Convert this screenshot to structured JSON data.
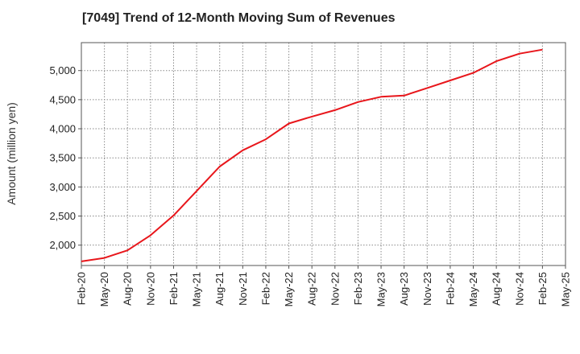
{
  "chart_data": {
    "type": "line",
    "title": "[7049]  Trend of 12-Month Moving Sum of Revenues",
    "ylabel": "Amount (million yen)",
    "xlabel": "",
    "x_ticks": [
      "Feb-20",
      "May-20",
      "Aug-20",
      "Nov-20",
      "Feb-21",
      "May-21",
      "Aug-21",
      "Nov-21",
      "Feb-22",
      "May-22",
      "Aug-22",
      "Nov-22",
      "Feb-23",
      "May-23",
      "Aug-23",
      "Nov-23",
      "Feb-24",
      "May-24",
      "Aug-24",
      "Nov-24",
      "Feb-25",
      "May-25"
    ],
    "y_ticks": [
      "2,000",
      "2,500",
      "3,000",
      "3,500",
      "4,000",
      "4,500",
      "5,000"
    ],
    "ylim": [
      1650,
      5480
    ],
    "grid": true,
    "series": [
      {
        "color": "#e8161b",
        "x": [
          "Feb-20",
          "May-20",
          "Aug-20",
          "Nov-20",
          "Feb-21",
          "May-21",
          "Aug-21",
          "Nov-21",
          "Feb-22",
          "May-22",
          "Aug-22",
          "Nov-22",
          "Feb-23",
          "May-23",
          "Aug-23",
          "Nov-23",
          "Feb-24",
          "May-24",
          "Aug-24",
          "Nov-24",
          "Feb-25"
        ],
        "values": [
          1720,
          1780,
          1910,
          2170,
          2510,
          2930,
          3350,
          3630,
          3820,
          4090,
          4210,
          4320,
          4460,
          4550,
          4570,
          4700,
          4830,
          4960,
          5160,
          5290,
          5360
        ]
      }
    ]
  }
}
